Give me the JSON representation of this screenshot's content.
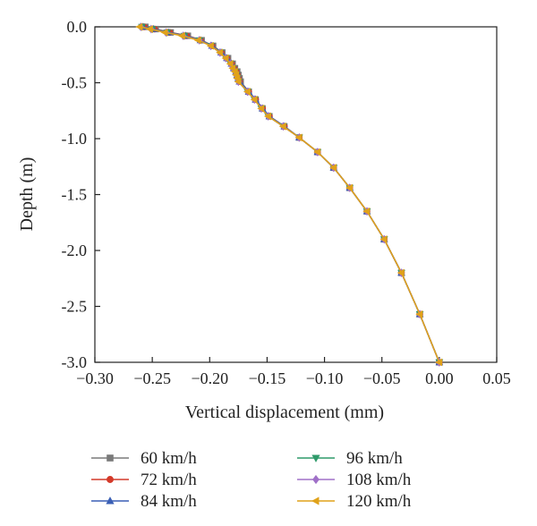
{
  "chart_data": {
    "type": "line",
    "xlabel": "Vertical displacement (mm)",
    "ylabel": "Depth (m)",
    "xlim": [
      -0.3,
      0.05
    ],
    "ylim": [
      -3.0,
      0.0
    ],
    "x_ticks": [
      -0.3,
      -0.25,
      -0.2,
      -0.15,
      -0.1,
      -0.05,
      0.0,
      0.05
    ],
    "x_tick_labels": [
      "−0.30",
      "−0.25",
      "−0.20",
      "−0.15",
      "−0.10",
      "−0.05",
      "0.00",
      "0.05"
    ],
    "y_ticks": [
      0.0,
      -0.5,
      -1.0,
      -1.5,
      -2.0,
      -2.5,
      -3.0
    ],
    "y_tick_labels": [
      "0.0",
      "-0.5",
      "-1.0",
      "-1.5",
      "-2.0",
      "-2.5",
      "-3.0"
    ],
    "grid": false,
    "legend_position": "bottom, two columns",
    "depth": [
      0.0,
      -0.02,
      -0.05,
      -0.08,
      -0.12,
      -0.17,
      -0.23,
      -0.28,
      -0.33,
      -0.37,
      -0.4,
      -0.43,
      -0.46,
      -0.49,
      -0.58,
      -0.65,
      -0.73,
      -0.8,
      -0.89,
      -0.99,
      -1.12,
      -1.26,
      -1.44,
      -1.65,
      -1.9,
      -2.2,
      -2.57,
      -3.0
    ],
    "series": [
      {
        "name": "60 km/h",
        "color": "#7a7a7a",
        "marker": "square",
        "x": [
          -0.256,
          -0.247,
          -0.234,
          -0.219,
          -0.207,
          -0.197,
          -0.189,
          -0.184,
          -0.18,
          -0.178,
          -0.176,
          -0.175,
          -0.174,
          -0.173,
          -0.166,
          -0.16,
          -0.154,
          -0.148,
          -0.135,
          -0.122,
          -0.106,
          -0.092,
          -0.078,
          -0.063,
          -0.048,
          -0.033,
          -0.017,
          0.0
        ]
      },
      {
        "name": "72 km/h",
        "color": "#d43a2a",
        "marker": "circle",
        "x": [
          -0.257,
          -0.248,
          -0.235,
          -0.22,
          -0.208,
          -0.198,
          -0.19,
          -0.185,
          -0.181,
          -0.179,
          -0.177,
          -0.176,
          -0.175,
          -0.174,
          -0.166,
          -0.16,
          -0.154,
          -0.148,
          -0.135,
          -0.122,
          -0.106,
          -0.092,
          -0.078,
          -0.063,
          -0.048,
          -0.033,
          -0.017,
          0.0
        ]
      },
      {
        "name": "84 km/h",
        "color": "#3a5fb5",
        "marker": "triangle-up",
        "x": [
          -0.258,
          -0.249,
          -0.236,
          -0.221,
          -0.208,
          -0.198,
          -0.19,
          -0.185,
          -0.181,
          -0.179,
          -0.177,
          -0.176,
          -0.175,
          -0.174,
          -0.166,
          -0.16,
          -0.154,
          -0.148,
          -0.135,
          -0.122,
          -0.106,
          -0.092,
          -0.078,
          -0.063,
          -0.048,
          -0.033,
          -0.017,
          0.0
        ]
      },
      {
        "name": "96 km/h",
        "color": "#2e9a6a",
        "marker": "triangle-down",
        "x": [
          -0.259,
          -0.25,
          -0.237,
          -0.222,
          -0.209,
          -0.199,
          -0.191,
          -0.186,
          -0.182,
          -0.18,
          -0.178,
          -0.177,
          -0.176,
          -0.175,
          -0.167,
          -0.161,
          -0.155,
          -0.149,
          -0.136,
          -0.122,
          -0.106,
          -0.092,
          -0.078,
          -0.063,
          -0.048,
          -0.033,
          -0.017,
          0.0
        ]
      },
      {
        "name": "108 km/h",
        "color": "#a070c8",
        "marker": "diamond",
        "x": [
          -0.26,
          -0.251,
          -0.238,
          -0.223,
          -0.209,
          -0.199,
          -0.191,
          -0.186,
          -0.182,
          -0.18,
          -0.178,
          -0.177,
          -0.176,
          -0.175,
          -0.167,
          -0.161,
          -0.155,
          -0.149,
          -0.136,
          -0.122,
          -0.106,
          -0.092,
          -0.078,
          -0.063,
          -0.048,
          -0.033,
          -0.017,
          0.0
        ]
      },
      {
        "name": "120 km/h",
        "color": "#e0a21a",
        "marker": "triangle-left",
        "x": [
          -0.261,
          -0.252,
          -0.239,
          -0.224,
          -0.21,
          -0.199,
          -0.191,
          -0.186,
          -0.182,
          -0.18,
          -0.178,
          -0.177,
          -0.176,
          -0.175,
          -0.167,
          -0.161,
          -0.155,
          -0.149,
          -0.136,
          -0.122,
          -0.106,
          -0.092,
          -0.078,
          -0.063,
          -0.048,
          -0.033,
          -0.017,
          0.0
        ]
      }
    ]
  }
}
